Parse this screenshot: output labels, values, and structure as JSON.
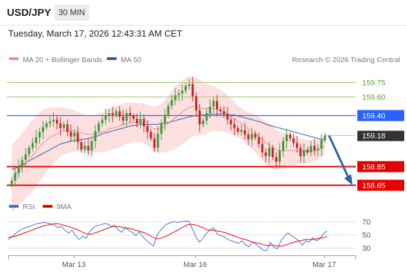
{
  "header": {
    "pair": "USD/JPY",
    "timeframe": "30 MIN",
    "datetime": "Tuesday, March 17, 2026 12:43:31 AM CET"
  },
  "legend": {
    "ma20_label": "MA 20 + Bollinger Bands",
    "ma50_label": "MA 50",
    "credit": "Research © 2026 Trading Central",
    "rsi_label": "RSI",
    "rsi_ma_label": "9MA"
  },
  "colors": {
    "ma20": "#f08a8a",
    "ma50": "#2f5aa6",
    "band": "#fbd5d5",
    "bullish": "#3b9a3b",
    "bearish": "#c62828",
    "resistance": "#2962ff",
    "support": "#e60000",
    "target_green": "#9acd6a",
    "arrow": "#2e5fa4",
    "current": "#333333"
  },
  "chart_data": [
    {
      "type": "candlestick",
      "ylim": [
        158.55,
        159.95
      ],
      "x_labels": [
        "Mar 13",
        "Mar 16",
        "Mar 17"
      ],
      "levels": [
        {
          "value": 159.75,
          "label": "159.75",
          "style": "green-line"
        },
        {
          "value": 159.6,
          "label": "159.60",
          "style": "green-line"
        },
        {
          "value": 159.4,
          "label": "159.40",
          "style": "resistance"
        },
        {
          "value": 159.18,
          "label": "159.18",
          "style": "current-price"
        },
        {
          "value": 158.85,
          "label": "158.85",
          "style": "support"
        },
        {
          "value": 158.65,
          "label": "158.65",
          "style": "support"
        }
      ],
      "close": [
        158.7,
        158.78,
        158.85,
        158.92,
        158.98,
        159.05,
        159.1,
        159.16,
        159.22,
        159.27,
        159.31,
        159.33,
        159.35,
        159.31,
        159.26,
        159.3,
        159.22,
        159.17,
        159.21,
        159.11,
        159.03,
        159.07,
        159.02,
        159.12,
        159.23,
        159.31,
        159.35,
        159.39,
        159.42,
        159.4,
        159.44,
        159.38,
        159.34,
        159.42,
        159.39,
        159.36,
        159.31,
        159.36,
        159.28,
        159.22,
        159.15,
        159.05,
        159.2,
        159.31,
        159.4,
        159.5,
        159.56,
        159.61,
        159.63,
        159.66,
        159.71,
        159.73,
        159.6,
        159.45,
        159.3,
        159.34,
        159.42,
        159.49,
        159.55,
        159.46,
        159.44,
        159.41,
        159.35,
        159.3,
        159.26,
        159.22,
        159.24,
        159.19,
        159.14,
        159.2,
        159.16,
        159.09,
        159.0,
        158.96,
        159.05,
        158.95,
        158.9,
        159.02,
        159.12,
        159.19,
        159.15,
        159.1,
        159.05,
        158.96,
        159.03,
        159.0,
        159.07,
        159.02,
        159.04,
        159.13,
        159.18
      ],
      "ma20": [
        158.72,
        158.76,
        158.8,
        158.84,
        158.88,
        158.93,
        158.97,
        159.02,
        159.06,
        159.1,
        159.13,
        159.16,
        159.18,
        159.2,
        159.22,
        159.23,
        159.23,
        159.23,
        159.23,
        159.22,
        159.21,
        159.2,
        159.19,
        159.19,
        159.2,
        159.21,
        159.22,
        159.23,
        159.25,
        159.26,
        159.27,
        159.28,
        159.3,
        159.31,
        159.32,
        159.32,
        159.32,
        159.32,
        159.31,
        159.29,
        159.27,
        159.25,
        159.25,
        159.26,
        159.28,
        159.31,
        159.34,
        159.37,
        159.4,
        159.43,
        159.46,
        159.48,
        159.49,
        159.49,
        159.48,
        159.47,
        159.47,
        159.47,
        159.47,
        159.46,
        159.45,
        159.43,
        159.41,
        159.39,
        159.36,
        159.33,
        159.31,
        159.28,
        159.25,
        159.23,
        159.2,
        159.17,
        159.14,
        159.1,
        159.08,
        159.05,
        159.03,
        159.02,
        159.02,
        159.02,
        159.02,
        159.02,
        159.02,
        159.01,
        159.01,
        159.01,
        159.01,
        159.02,
        159.03,
        159.05,
        159.07
      ],
      "ma50": [
        158.82,
        158.83,
        158.85,
        158.87,
        158.89,
        158.91,
        158.93,
        158.95,
        158.97,
        158.99,
        159.01,
        159.03,
        159.05,
        159.07,
        159.09,
        159.1,
        159.11,
        159.12,
        159.13,
        159.13,
        159.14,
        159.14,
        159.15,
        159.16,
        159.17,
        159.18,
        159.2,
        159.21,
        159.22,
        159.23,
        159.24,
        159.25,
        159.26,
        159.27,
        159.28,
        159.29,
        159.29,
        159.3,
        159.3,
        159.3,
        159.3,
        159.3,
        159.3,
        159.31,
        159.31,
        159.32,
        159.33,
        159.34,
        159.35,
        159.36,
        159.37,
        159.38,
        159.39,
        159.39,
        159.39,
        159.4,
        159.4,
        159.41,
        159.41,
        159.41,
        159.41,
        159.41,
        159.41,
        159.4,
        159.4,
        159.39,
        159.38,
        159.37,
        159.36,
        159.35,
        159.34,
        159.33,
        159.32,
        159.3,
        159.29,
        159.28,
        159.27,
        159.26,
        159.25,
        159.24,
        159.23,
        159.22,
        159.21,
        159.2,
        159.19,
        159.18,
        159.17,
        159.16,
        159.15,
        159.14,
        159.13
      ],
      "bb_width": [
        0.35,
        0.36,
        0.36,
        0.37,
        0.37,
        0.38,
        0.38,
        0.38,
        0.37,
        0.36,
        0.34,
        0.32,
        0.3,
        0.28,
        0.26,
        0.25,
        0.24,
        0.23,
        0.22,
        0.21,
        0.21,
        0.2,
        0.2,
        0.2,
        0.2,
        0.21,
        0.21,
        0.22,
        0.22,
        0.23,
        0.23,
        0.23,
        0.23,
        0.22,
        0.22,
        0.21,
        0.21,
        0.21,
        0.21,
        0.22,
        0.23,
        0.24,
        0.25,
        0.26,
        0.28,
        0.3,
        0.32,
        0.33,
        0.34,
        0.34,
        0.34,
        0.33,
        0.32,
        0.31,
        0.3,
        0.28,
        0.27,
        0.25,
        0.24,
        0.23,
        0.22,
        0.21,
        0.2,
        0.19,
        0.18,
        0.17,
        0.17,
        0.17,
        0.18,
        0.19,
        0.2,
        0.21,
        0.22,
        0.23,
        0.23,
        0.23,
        0.22,
        0.2,
        0.19,
        0.18,
        0.17,
        0.16,
        0.15,
        0.14,
        0.13,
        0.12,
        0.12,
        0.11,
        0.11,
        0.1,
        0.1
      ],
      "projection": {
        "from": 159.18,
        "to": 158.65
      }
    },
    {
      "type": "line",
      "ylim": [
        20,
        80
      ],
      "ticks": [
        30,
        50,
        70
      ],
      "series": [
        {
          "name": "RSI",
          "values": [
            42,
            46,
            51,
            55,
            58,
            60,
            62,
            64,
            66,
            67,
            68,
            67,
            66,
            64,
            60,
            62,
            56,
            52,
            56,
            48,
            42,
            47,
            44,
            54,
            60,
            63,
            64,
            66,
            66,
            62,
            64,
            57,
            53,
            60,
            56,
            53,
            48,
            54,
            46,
            41,
            36,
            32,
            48,
            56,
            62,
            66,
            68,
            69,
            68,
            69,
            70,
            70,
            58,
            46,
            38,
            44,
            52,
            57,
            60,
            50,
            48,
            46,
            42,
            40,
            38,
            36,
            40,
            34,
            31,
            38,
            35,
            30,
            26,
            25,
            38,
            30,
            28,
            40,
            47,
            52,
            48,
            44,
            40,
            33,
            40,
            38,
            45,
            40,
            43,
            51,
            55
          ]
        },
        {
          "name": "9MA",
          "values": [
            45,
            46,
            47,
            49,
            51,
            53,
            55,
            57,
            59,
            61,
            63,
            64,
            65,
            66,
            66,
            65,
            63,
            62,
            60,
            58,
            56,
            53,
            51,
            50,
            51,
            53,
            55,
            57,
            59,
            61,
            62,
            62,
            61,
            60,
            59,
            58,
            56,
            55,
            53,
            51,
            48,
            45,
            43,
            44,
            46,
            48,
            51,
            54,
            57,
            60,
            63,
            65,
            65,
            64,
            62,
            60,
            57,
            56,
            56,
            55,
            54,
            53,
            51,
            49,
            47,
            45,
            43,
            42,
            40,
            38,
            37,
            36,
            34,
            33,
            33,
            33,
            32,
            32,
            33,
            35,
            37,
            38,
            40,
            41,
            42,
            42,
            42,
            43,
            44,
            45,
            47
          ]
        }
      ]
    }
  ]
}
